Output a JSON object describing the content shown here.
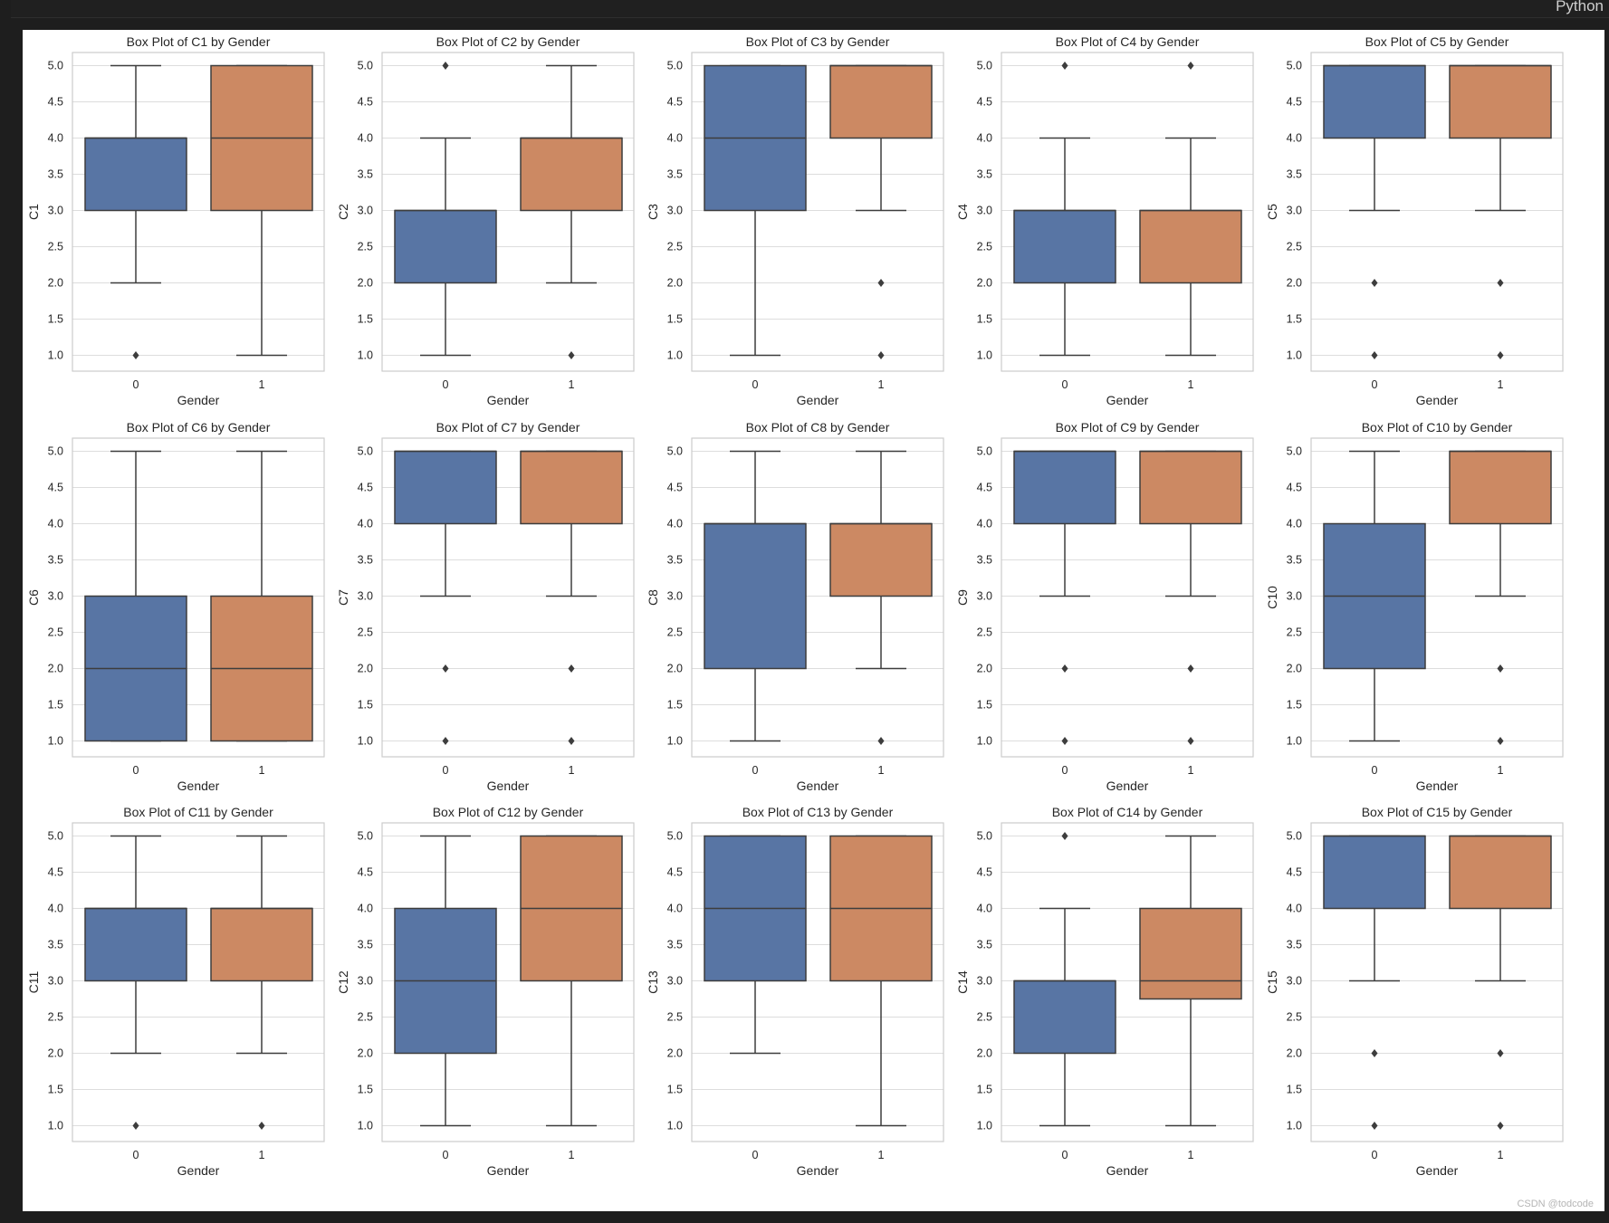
{
  "topbar": {
    "language_label": "Python"
  },
  "watermark": "CSDN @todcode",
  "colors": {
    "group0": "#5875a4",
    "group1": "#cc8963",
    "frame": "#cccccc",
    "grid": "#dddddd",
    "line": "#3d3d3d",
    "text": "#262626"
  },
  "chart_data": [
    {
      "type": "box",
      "title": "Box Plot of C1 by Gender",
      "xlabel": "Gender",
      "ylabel": "C1",
      "categories": [
        "0",
        "1"
      ],
      "yticks": [
        "1.0",
        "1.5",
        "2.0",
        "2.5",
        "3.0",
        "3.5",
        "4.0",
        "4.5",
        "5.0"
      ],
      "ylim": [
        0.9,
        5.1
      ],
      "grid": true,
      "boxes": [
        {
          "category": "0",
          "whisker_low": 2,
          "q1": 3,
          "median": 4,
          "q3": 4,
          "whisker_high": 5,
          "outliers": [
            1
          ]
        },
        {
          "category": "1",
          "whisker_low": 1,
          "q1": 3,
          "median": 4,
          "q3": 5,
          "whisker_high": 5,
          "outliers": []
        }
      ]
    },
    {
      "type": "box",
      "title": "Box Plot of C2 by Gender",
      "xlabel": "Gender",
      "ylabel": "C2",
      "categories": [
        "0",
        "1"
      ],
      "yticks": [
        "1.0",
        "1.5",
        "2.0",
        "2.5",
        "3.0",
        "3.5",
        "4.0",
        "4.5",
        "5.0"
      ],
      "ylim": [
        0.9,
        5.1
      ],
      "grid": true,
      "boxes": [
        {
          "category": "0",
          "whisker_low": 1,
          "q1": 2,
          "median": 3,
          "q3": 3,
          "whisker_high": 4,
          "outliers": [
            5
          ]
        },
        {
          "category": "1",
          "whisker_low": 2,
          "q1": 3,
          "median": 4,
          "q3": 4,
          "whisker_high": 5,
          "outliers": [
            1
          ]
        }
      ]
    },
    {
      "type": "box",
      "title": "Box Plot of C3 by Gender",
      "xlabel": "Gender",
      "ylabel": "C3",
      "categories": [
        "0",
        "1"
      ],
      "yticks": [
        "1.0",
        "1.5",
        "2.0",
        "2.5",
        "3.0",
        "3.5",
        "4.0",
        "4.5",
        "5.0"
      ],
      "ylim": [
        0.9,
        5.1
      ],
      "grid": true,
      "boxes": [
        {
          "category": "0",
          "whisker_low": 1,
          "q1": 3,
          "median": 4,
          "q3": 5,
          "whisker_high": 5,
          "outliers": []
        },
        {
          "category": "1",
          "whisker_low": 3,
          "q1": 4,
          "median": 5,
          "q3": 5,
          "whisker_high": 5,
          "outliers": [
            2,
            1
          ]
        }
      ]
    },
    {
      "type": "box",
      "title": "Box Plot of C4 by Gender",
      "xlabel": "Gender",
      "ylabel": "C4",
      "categories": [
        "0",
        "1"
      ],
      "yticks": [
        "1.0",
        "1.5",
        "2.0",
        "2.5",
        "3.0",
        "3.5",
        "4.0",
        "4.5",
        "5.0"
      ],
      "ylim": [
        0.9,
        5.1
      ],
      "grid": true,
      "boxes": [
        {
          "category": "0",
          "whisker_low": 1,
          "q1": 2,
          "median": 3,
          "q3": 3,
          "whisker_high": 4,
          "outliers": [
            5
          ]
        },
        {
          "category": "1",
          "whisker_low": 1,
          "q1": 2,
          "median": 3,
          "q3": 3,
          "whisker_high": 4,
          "outliers": [
            5
          ]
        }
      ]
    },
    {
      "type": "box",
      "title": "Box Plot of C5 by Gender",
      "xlabel": "Gender",
      "ylabel": "C5",
      "categories": [
        "0",
        "1"
      ],
      "yticks": [
        "1.0",
        "1.5",
        "2.0",
        "2.5",
        "3.0",
        "3.5",
        "4.0",
        "4.5",
        "5.0"
      ],
      "ylim": [
        0.9,
        5.1
      ],
      "grid": true,
      "boxes": [
        {
          "category": "0",
          "whisker_low": 3,
          "q1": 4,
          "median": 5,
          "q3": 5,
          "whisker_high": 5,
          "outliers": [
            2,
            1
          ]
        },
        {
          "category": "1",
          "whisker_low": 3,
          "q1": 4,
          "median": 5,
          "q3": 5,
          "whisker_high": 5,
          "outliers": [
            2,
            1
          ]
        }
      ]
    },
    {
      "type": "box",
      "title": "Box Plot of C6 by Gender",
      "xlabel": "Gender",
      "ylabel": "C6",
      "categories": [
        "0",
        "1"
      ],
      "yticks": [
        "1.0",
        "1.5",
        "2.0",
        "2.5",
        "3.0",
        "3.5",
        "4.0",
        "4.5",
        "5.0"
      ],
      "ylim": [
        0.9,
        5.1
      ],
      "grid": true,
      "boxes": [
        {
          "category": "0",
          "whisker_low": 1,
          "q1": 1,
          "median": 2,
          "q3": 3,
          "whisker_high": 5,
          "outliers": []
        },
        {
          "category": "1",
          "whisker_low": 1,
          "q1": 1,
          "median": 2,
          "q3": 3,
          "whisker_high": 5,
          "outliers": []
        }
      ]
    },
    {
      "type": "box",
      "title": "Box Plot of C7 by Gender",
      "xlabel": "Gender",
      "ylabel": "C7",
      "categories": [
        "0",
        "1"
      ],
      "yticks": [
        "1.0",
        "1.5",
        "2.0",
        "2.5",
        "3.0",
        "3.5",
        "4.0",
        "4.5",
        "5.0"
      ],
      "ylim": [
        0.9,
        5.1
      ],
      "grid": true,
      "boxes": [
        {
          "category": "0",
          "whisker_low": 3,
          "q1": 4,
          "median": 5,
          "q3": 5,
          "whisker_high": 5,
          "outliers": [
            2,
            1
          ]
        },
        {
          "category": "1",
          "whisker_low": 3,
          "q1": 4,
          "median": 5,
          "q3": 5,
          "whisker_high": 5,
          "outliers": [
            2,
            1
          ]
        }
      ]
    },
    {
      "type": "box",
      "title": "Box Plot of C8 by Gender",
      "xlabel": "Gender",
      "ylabel": "C8",
      "categories": [
        "0",
        "1"
      ],
      "yticks": [
        "1.0",
        "1.5",
        "2.0",
        "2.5",
        "3.0",
        "3.5",
        "4.0",
        "4.5",
        "5.0"
      ],
      "ylim": [
        0.9,
        5.1
      ],
      "grid": true,
      "boxes": [
        {
          "category": "0",
          "whisker_low": 1,
          "q1": 2,
          "median": 4,
          "q3": 4,
          "whisker_high": 5,
          "outliers": []
        },
        {
          "category": "1",
          "whisker_low": 2,
          "q1": 3,
          "median": 4,
          "q3": 4,
          "whisker_high": 5,
          "outliers": [
            1
          ]
        }
      ]
    },
    {
      "type": "box",
      "title": "Box Plot of C9 by Gender",
      "xlabel": "Gender",
      "ylabel": "C9",
      "categories": [
        "0",
        "1"
      ],
      "yticks": [
        "1.0",
        "1.5",
        "2.0",
        "2.5",
        "3.0",
        "3.5",
        "4.0",
        "4.5",
        "5.0"
      ],
      "ylim": [
        0.9,
        5.1
      ],
      "grid": true,
      "boxes": [
        {
          "category": "0",
          "whisker_low": 3,
          "q1": 4,
          "median": 5,
          "q3": 5,
          "whisker_high": 5,
          "outliers": [
            2,
            1
          ]
        },
        {
          "category": "1",
          "whisker_low": 3,
          "q1": 4,
          "median": 5,
          "q3": 5,
          "whisker_high": 5,
          "outliers": [
            2,
            1
          ]
        }
      ]
    },
    {
      "type": "box",
      "title": "Box Plot of C10 by Gender",
      "xlabel": "Gender",
      "ylabel": "C10",
      "categories": [
        "0",
        "1"
      ],
      "yticks": [
        "1.0",
        "1.5",
        "2.0",
        "2.5",
        "3.0",
        "3.5",
        "4.0",
        "4.5",
        "5.0"
      ],
      "ylim": [
        0.9,
        5.1
      ],
      "grid": true,
      "boxes": [
        {
          "category": "0",
          "whisker_low": 1,
          "q1": 2,
          "median": 3,
          "q3": 4,
          "whisker_high": 5,
          "outliers": []
        },
        {
          "category": "1",
          "whisker_low": 3,
          "q1": 4,
          "median": 5,
          "q3": 5,
          "whisker_high": 5,
          "outliers": [
            2,
            1
          ]
        }
      ]
    },
    {
      "type": "box",
      "title": "Box Plot of C11 by Gender",
      "xlabel": "Gender",
      "ylabel": "C11",
      "categories": [
        "0",
        "1"
      ],
      "yticks": [
        "1.0",
        "1.5",
        "2.0",
        "2.5",
        "3.0",
        "3.5",
        "4.0",
        "4.5",
        "5.0"
      ],
      "ylim": [
        0.9,
        5.1
      ],
      "grid": true,
      "boxes": [
        {
          "category": "0",
          "whisker_low": 2,
          "q1": 3,
          "median": 4,
          "q3": 4,
          "whisker_high": 5,
          "outliers": [
            1
          ]
        },
        {
          "category": "1",
          "whisker_low": 2,
          "q1": 3,
          "median": 4,
          "q3": 4,
          "whisker_high": 5,
          "outliers": [
            1
          ]
        }
      ]
    },
    {
      "type": "box",
      "title": "Box Plot of C12 by Gender",
      "xlabel": "Gender",
      "ylabel": "C12",
      "categories": [
        "0",
        "1"
      ],
      "yticks": [
        "1.0",
        "1.5",
        "2.0",
        "2.5",
        "3.0",
        "3.5",
        "4.0",
        "4.5",
        "5.0"
      ],
      "ylim": [
        0.9,
        5.1
      ],
      "grid": true,
      "boxes": [
        {
          "category": "0",
          "whisker_low": 1,
          "q1": 2,
          "median": 3,
          "q3": 4,
          "whisker_high": 5,
          "outliers": []
        },
        {
          "category": "1",
          "whisker_low": 1,
          "q1": 3,
          "median": 4,
          "q3": 5,
          "whisker_high": 5,
          "outliers": []
        }
      ]
    },
    {
      "type": "box",
      "title": "Box Plot of C13 by Gender",
      "xlabel": "Gender",
      "ylabel": "C13",
      "categories": [
        "0",
        "1"
      ],
      "yticks": [
        "1.0",
        "1.5",
        "2.0",
        "2.5",
        "3.0",
        "3.5",
        "4.0",
        "4.5",
        "5.0"
      ],
      "ylim": [
        0.9,
        5.1
      ],
      "grid": true,
      "boxes": [
        {
          "category": "0",
          "whisker_low": 2,
          "q1": 3,
          "median": 4,
          "q3": 5,
          "whisker_high": 5,
          "outliers": []
        },
        {
          "category": "1",
          "whisker_low": 1,
          "q1": 3,
          "median": 4,
          "q3": 5,
          "whisker_high": 5,
          "outliers": []
        }
      ]
    },
    {
      "type": "box",
      "title": "Box Plot of C14 by Gender",
      "xlabel": "Gender",
      "ylabel": "C14",
      "categories": [
        "0",
        "1"
      ],
      "yticks": [
        "1.0",
        "1.5",
        "2.0",
        "2.5",
        "3.0",
        "3.5",
        "4.0",
        "4.5",
        "5.0"
      ],
      "ylim": [
        0.9,
        5.1
      ],
      "grid": true,
      "boxes": [
        {
          "category": "0",
          "whisker_low": 1,
          "q1": 2,
          "median": 3,
          "q3": 3,
          "whisker_high": 4,
          "outliers": [
            5
          ]
        },
        {
          "category": "1",
          "whisker_low": 1,
          "q1": 2.75,
          "median": 3,
          "q3": 4,
          "whisker_high": 5,
          "outliers": []
        }
      ]
    },
    {
      "type": "box",
      "title": "Box Plot of C15 by Gender",
      "xlabel": "Gender",
      "ylabel": "C15",
      "categories": [
        "0",
        "1"
      ],
      "yticks": [
        "1.0",
        "1.5",
        "2.0",
        "2.5",
        "3.0",
        "3.5",
        "4.0",
        "4.5",
        "5.0"
      ],
      "ylim": [
        0.9,
        5.1
      ],
      "grid": true,
      "boxes": [
        {
          "category": "0",
          "whisker_low": 3,
          "q1": 4,
          "median": 5,
          "q3": 5,
          "whisker_high": 5,
          "outliers": [
            2,
            1
          ]
        },
        {
          "category": "1",
          "whisker_low": 3,
          "q1": 4,
          "median": 5,
          "q3": 5,
          "whisker_high": 5,
          "outliers": [
            2,
            1
          ]
        }
      ]
    }
  ]
}
